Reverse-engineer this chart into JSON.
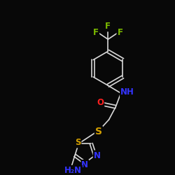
{
  "bg_color": "#080808",
  "bond_color": "#d8d8d8",
  "atom_colors": {
    "F": "#7cbb00",
    "S": "#d4a000",
    "N": "#3333ff",
    "O": "#ff2020",
    "NH": "#3333ff",
    "H2N": "#3333ff"
  },
  "font_size": 8.5,
  "figsize": [
    2.5,
    2.5
  ],
  "dpi": 100,
  "lw": 1.2
}
